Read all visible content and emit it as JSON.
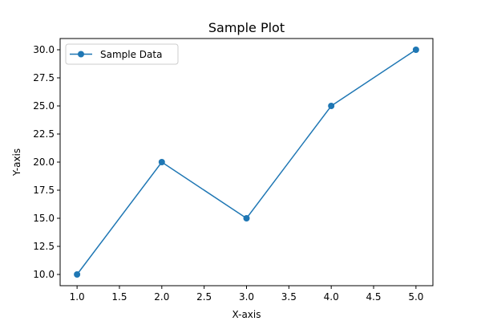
{
  "chart_data": {
    "type": "line",
    "title": "Sample Plot",
    "xlabel": "X-axis",
    "ylabel": "Y-axis",
    "xlim": [
      0.8,
      5.2
    ],
    "ylim": [
      9.0,
      31.0
    ],
    "x_ticks": [
      1.0,
      1.5,
      2.0,
      2.5,
      3.0,
      3.5,
      4.0,
      4.5,
      5.0
    ],
    "y_ticks": [
      10.0,
      12.5,
      15.0,
      17.5,
      20.0,
      22.5,
      25.0,
      27.5,
      30.0
    ],
    "x_tick_labels": [
      "1.0",
      "1.5",
      "2.0",
      "2.5",
      "3.0",
      "3.5",
      "4.0",
      "4.5",
      "5.0"
    ],
    "y_tick_labels": [
      "10.0",
      "12.5",
      "15.0",
      "17.5",
      "20.0",
      "22.5",
      "25.0",
      "27.5",
      "30.0"
    ],
    "grid": false,
    "legend_position": "top-left",
    "series": [
      {
        "name": "Sample Data",
        "color": "#1f77b4",
        "marker": "circle",
        "x": [
          1,
          2,
          3,
          4,
          5
        ],
        "y": [
          10,
          20,
          15,
          25,
          30
        ]
      }
    ]
  }
}
